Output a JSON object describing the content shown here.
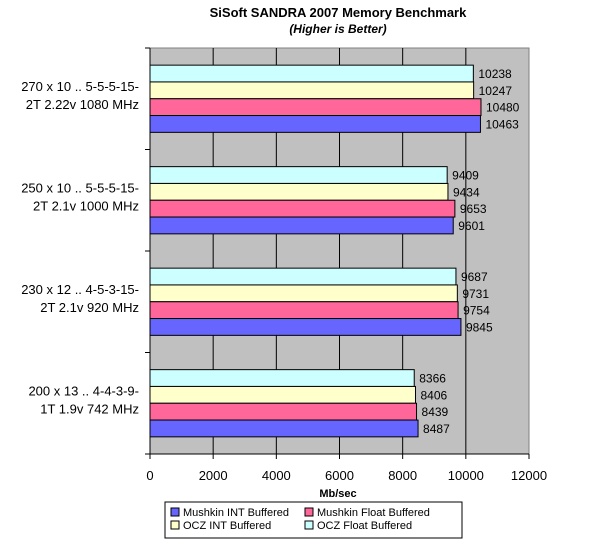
{
  "chart_data": {
    "type": "bar",
    "orientation": "horizontal",
    "title": "SiSoft SANDRA 2007 Memory Benchmark",
    "subtitle": "(Higher is Better)",
    "xlabel": "Mb/sec",
    "ylabel": "",
    "xlim": [
      0,
      12000
    ],
    "xticks": [
      0,
      2000,
      4000,
      6000,
      8000,
      10000,
      12000
    ],
    "grid": true,
    "plot_background": "#c0c0c0",
    "legend_position": "bottom",
    "categories": [
      [
        "270 x 10 .. 5-5-5-15-",
        "2T  2.22v  1080 MHz"
      ],
      [
        "250 x 10 .. 5-5-5-15-",
        "2T  2.1v  1000 MHz"
      ],
      [
        "230 x 12 .. 4-5-3-15-",
        "2T  2.1v  920 MHz"
      ],
      [
        "200 x 13 .. 4-4-3-9-",
        "1T  1.9v  742 MHz"
      ]
    ],
    "series": [
      {
        "name": "OCZ Float Buffered",
        "color": "#ccffff",
        "values": [
          10238,
          9409,
          9687,
          8366
        ]
      },
      {
        "name": "OCZ INT Buffered",
        "color": "#ffffcc",
        "values": [
          10247,
          9434,
          9731,
          8406
        ]
      },
      {
        "name": "Mushkin Float Buffered",
        "color": "#ff6699",
        "values": [
          10480,
          9653,
          9754,
          8439
        ]
      },
      {
        "name": "Mushkin INT Buffered",
        "color": "#6666ff",
        "values": [
          10463,
          9601,
          9845,
          8487
        ]
      }
    ],
    "legend_order": [
      "Mushkin INT Buffered",
      "Mushkin Float Buffered",
      "OCZ INT Buffered",
      "OCZ Float Buffered"
    ]
  }
}
